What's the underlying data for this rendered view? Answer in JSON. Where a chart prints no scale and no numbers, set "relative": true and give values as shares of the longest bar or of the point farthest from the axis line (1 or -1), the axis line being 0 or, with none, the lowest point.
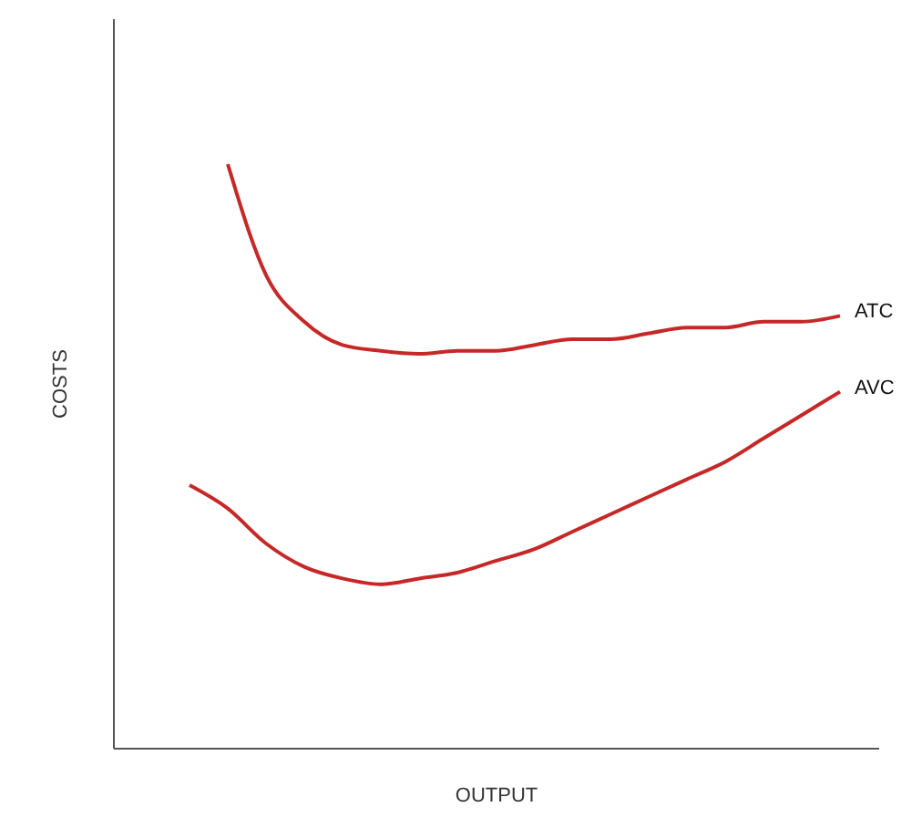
{
  "chart_data": {
    "type": "line",
    "relative": true,
    "xlabel": "OUTPUT",
    "ylabel": "COSTS",
    "tick_labels": false,
    "grid": false,
    "marker": "none",
    "line_style": "solid",
    "categories": [
      null,
      null,
      null,
      null,
      null,
      null,
      null,
      null,
      null,
      null,
      null,
      null,
      null,
      null,
      null,
      null,
      null,
      null,
      null,
      null,
      null
    ],
    "series": [
      {
        "name": "ATC",
        "color": "#c62828",
        "values": [
          null,
          null,
          null,
          1.0,
          0.81,
          0.73,
          0.69,
          0.68,
          0.675,
          0.68,
          0.68,
          0.69,
          0.7,
          0.7,
          0.71,
          0.72,
          0.72,
          0.73,
          0.73,
          0.74,
          null
        ]
      },
      {
        "name": "AVC",
        "color": "#c62828",
        "values": [
          null,
          null,
          0.45,
          0.41,
          0.35,
          0.31,
          0.29,
          0.28,
          0.29,
          0.3,
          0.32,
          0.34,
          0.37,
          0.4,
          0.43,
          0.46,
          0.49,
          0.53,
          0.57,
          0.61,
          null
        ]
      }
    ]
  }
}
